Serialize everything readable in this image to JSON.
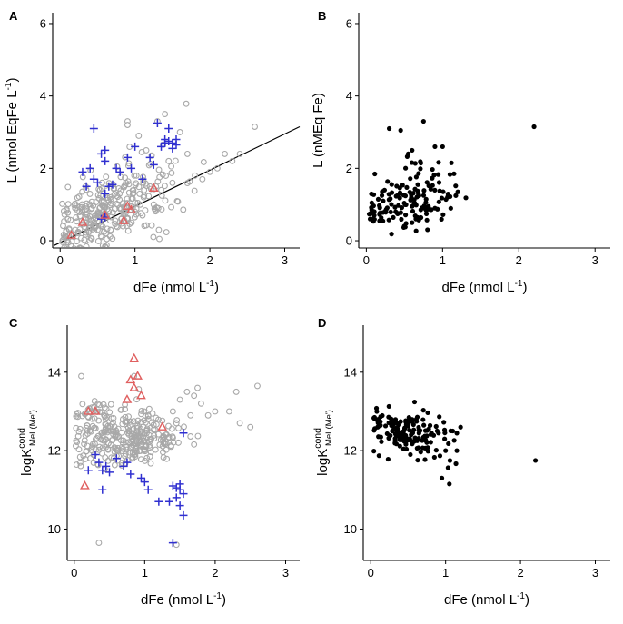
{
  "figure": {
    "title": ""
  },
  "chart_data": [
    {
      "panel": "A",
      "type": "scatter",
      "xlabel": "dFe (nmol L⁻¹)",
      "ylabel": "L (nmol EqFe L⁻¹)",
      "xlim": [
        -0.1,
        3.2
      ],
      "ylim": [
        -0.2,
        6.3
      ],
      "xticks": [
        0,
        1,
        2,
        3
      ],
      "yticks": [
        0,
        2,
        4,
        6
      ],
      "fitline": {
        "intercept": -0.05,
        "slope": 1.0
      },
      "series": [
        {
          "name": "circles-gray",
          "marker": "circle",
          "color": "#a8a8a8",
          "cloud": {
            "count": 320,
            "x_center": 0.65,
            "x_spread": 0.42,
            "y_base": 0.8,
            "y_slope": 0.9,
            "y_spread": 0.55,
            "seed": 11
          },
          "points": [
            [
              2.6,
              3.15
            ],
            [
              2.3,
              2.2
            ],
            [
              2.1,
              2.0
            ],
            [
              2.0,
              1.9
            ],
            [
              1.9,
              1.7
            ],
            [
              1.8,
              1.8
            ],
            [
              1.7,
              2.4
            ],
            [
              1.6,
              3.0
            ],
            [
              1.5,
              1.6
            ],
            [
              1.45,
              2.2
            ],
            [
              1.4,
              3.5
            ],
            [
              1.35,
              1.4
            ],
            [
              1.3,
              3.3
            ],
            [
              1.2,
              1.5
            ],
            [
              1.15,
              2.5
            ],
            [
              1.05,
              2.9
            ],
            [
              0.9,
              3.2
            ],
            [
              0.9,
              3.3
            ],
            [
              1.0,
              0.8
            ],
            [
              0.85,
              0.55
            ],
            [
              0.75,
              0.4
            ],
            [
              0.5,
              0.3
            ],
            [
              0.2,
              0.3
            ],
            [
              0.35,
              0.5
            ],
            [
              1.1,
              0.7
            ],
            [
              1.25,
              1.0
            ],
            [
              2.2,
              2.4
            ],
            [
              2.4,
              2.4
            ]
          ]
        },
        {
          "name": "crosses-blue",
          "marker": "plus",
          "color": "#3030d0",
          "points": [
            [
              0.45,
              3.1
            ],
            [
              1.3,
              3.25
            ],
            [
              1.45,
              3.1
            ],
            [
              1.4,
              2.8
            ],
            [
              1.45,
              2.75
            ],
            [
              1.5,
              2.7
            ],
            [
              1.55,
              2.8
            ],
            [
              1.35,
              2.6
            ],
            [
              1.5,
              2.55
            ],
            [
              1.55,
              2.65
            ],
            [
              1.4,
              2.7
            ],
            [
              0.6,
              2.5
            ],
            [
              0.6,
              2.2
            ],
            [
              0.55,
              2.4
            ],
            [
              1.0,
              2.6
            ],
            [
              0.75,
              2.0
            ],
            [
              0.8,
              1.9
            ],
            [
              0.9,
              2.3
            ],
            [
              0.95,
              2.0
            ],
            [
              0.3,
              1.9
            ],
            [
              0.4,
              2.0
            ],
            [
              0.45,
              1.7
            ],
            [
              0.5,
              1.6
            ],
            [
              0.65,
              1.5
            ],
            [
              0.6,
              1.3
            ],
            [
              0.7,
              1.55
            ],
            [
              1.2,
              2.3
            ],
            [
              1.25,
              2.1
            ],
            [
              1.1,
              1.7
            ],
            [
              0.35,
              1.5
            ],
            [
              0.55,
              0.6
            ],
            [
              0.6,
              0.65
            ]
          ]
        },
        {
          "name": "triangles-red",
          "marker": "triangle",
          "color": "#e06060",
          "points": [
            [
              0.15,
              0.15
            ],
            [
              0.3,
              0.5
            ],
            [
              0.6,
              0.7
            ],
            [
              0.85,
              0.55
            ],
            [
              0.9,
              0.95
            ],
            [
              0.95,
              0.85
            ],
            [
              1.25,
              1.45
            ]
          ]
        }
      ]
    },
    {
      "panel": "B",
      "type": "scatter",
      "xlabel": "dFe (nmol L⁻¹)",
      "ylabel": "L (nMEq Fe)",
      "xlim": [
        -0.1,
        3.2
      ],
      "ylim": [
        -0.2,
        6.3
      ],
      "xticks": [
        0,
        1,
        2,
        3
      ],
      "yticks": [
        0,
        2,
        4,
        6
      ],
      "series": [
        {
          "name": "dots-black",
          "marker": "dot",
          "color": "#000000",
          "cloud": {
            "count": 150,
            "x_center": 0.55,
            "x_spread": 0.3,
            "y_base": 1.1,
            "y_slope": 0.4,
            "y_spread": 0.4,
            "seed": 23
          },
          "points": [
            [
              2.2,
              3.15
            ],
            [
              0.75,
              3.3
            ],
            [
              0.3,
              3.1
            ],
            [
              0.45,
              3.05
            ],
            [
              0.9,
              2.6
            ],
            [
              1.0,
              2.6
            ],
            [
              0.6,
              2.5
            ],
            [
              0.55,
              2.4
            ],
            [
              1.2,
              1.35
            ],
            [
              1.15,
              1.85
            ],
            [
              0.05,
              0.6
            ],
            [
              0.6,
              0.5
            ],
            [
              0.65,
              0.6
            ],
            [
              0.9,
              0.9
            ]
          ]
        }
      ]
    },
    {
      "panel": "C",
      "type": "scatter",
      "xlabel": "dFe (nmol L⁻¹)",
      "ylabel": "logK",
      "ylabel_sup": "cond",
      "ylabel_sub": "MeL(Me')",
      "xlim": [
        -0.1,
        3.2
      ],
      "ylim": [
        9.2,
        15.2
      ],
      "xticks": [
        0,
        1,
        2,
        3
      ],
      "yticks": [
        10,
        12,
        14
      ],
      "series": [
        {
          "name": "circles-gray",
          "marker": "circle",
          "color": "#a8a8a8",
          "cloud": {
            "count": 320,
            "x_center": 0.7,
            "x_spread": 0.38,
            "y_base": 12.35,
            "y_slope": 0.0,
            "y_spread": 0.4,
            "seed": 37
          },
          "points": [
            [
              2.6,
              13.65
            ],
            [
              2.3,
              13.5
            ],
            [
              2.5,
              12.6
            ],
            [
              2.35,
              12.7
            ],
            [
              2.2,
              13.0
            ],
            [
              2.0,
              13.0
            ],
            [
              1.9,
              12.9
            ],
            [
              1.8,
              13.2
            ],
            [
              1.7,
              13.4
            ],
            [
              1.75,
              13.6
            ],
            [
              1.6,
              13.5
            ],
            [
              1.5,
              13.3
            ],
            [
              1.65,
              12.9
            ],
            [
              1.4,
              13.0
            ],
            [
              1.45,
              12.7
            ],
            [
              1.3,
              12.4
            ],
            [
              0.1,
              13.9
            ],
            [
              0.25,
              13.1
            ],
            [
              0.35,
              9.65
            ],
            [
              1.45,
              9.6
            ],
            [
              1.05,
              12.9
            ],
            [
              0.85,
              13.9
            ]
          ]
        },
        {
          "name": "crosses-blue",
          "marker": "plus",
          "color": "#3030d0",
          "points": [
            [
              1.55,
              12.45
            ],
            [
              1.5,
              11.15
            ],
            [
              1.4,
              11.1
            ],
            [
              1.45,
              11.05
            ],
            [
              1.5,
              11.0
            ],
            [
              1.55,
              10.9
            ],
            [
              1.45,
              10.8
            ],
            [
              1.35,
              10.7
            ],
            [
              1.5,
              10.6
            ],
            [
              1.55,
              10.35
            ],
            [
              1.4,
              9.65
            ],
            [
              1.2,
              10.7
            ],
            [
              1.05,
              11.0
            ],
            [
              1.0,
              11.2
            ],
            [
              0.95,
              11.3
            ],
            [
              0.8,
              11.4
            ],
            [
              0.4,
              11.5
            ],
            [
              0.45,
              11.6
            ],
            [
              0.35,
              11.7
            ],
            [
              0.5,
              11.45
            ],
            [
              0.7,
              11.6
            ],
            [
              0.75,
              11.7
            ],
            [
              0.6,
              11.8
            ],
            [
              0.3,
              11.9
            ],
            [
              0.4,
              11.0
            ],
            [
              0.2,
              11.5
            ]
          ]
        },
        {
          "name": "triangles-red",
          "marker": "triangle",
          "color": "#e06060",
          "points": [
            [
              0.15,
              11.1
            ],
            [
              0.2,
              13.0
            ],
            [
              0.3,
              13.0
            ],
            [
              0.75,
              13.3
            ],
            [
              0.8,
              13.8
            ],
            [
              0.85,
              13.6
            ],
            [
              0.85,
              14.35
            ],
            [
              0.9,
              13.9
            ],
            [
              0.95,
              13.4
            ],
            [
              1.25,
              12.6
            ]
          ]
        }
      ]
    },
    {
      "panel": "D",
      "type": "scatter",
      "xlabel": "dFe (nmol L⁻¹)",
      "ylabel": "logK",
      "ylabel_sup": "cond",
      "ylabel_sub": "MeL(Me')",
      "xlim": [
        -0.1,
        3.2
      ],
      "ylim": [
        9.2,
        15.2
      ],
      "xticks": [
        0,
        1,
        2,
        3
      ],
      "yticks": [
        10,
        12,
        14
      ],
      "series": [
        {
          "name": "dots-black",
          "marker": "dot",
          "color": "#000000",
          "cloud": {
            "count": 160,
            "x_center": 0.5,
            "x_spread": 0.3,
            "y_base": 12.45,
            "y_slope": -0.35,
            "y_spread": 0.3,
            "seed": 53
          },
          "points": [
            [
              2.2,
              11.75
            ],
            [
              1.05,
              11.15
            ],
            [
              0.95,
              11.3
            ],
            [
              0.05,
              12.85
            ],
            [
              0.1,
              12.8
            ],
            [
              1.15,
              12.0
            ],
            [
              1.2,
              12.6
            ],
            [
              1.0,
              12.0
            ]
          ]
        }
      ]
    }
  ]
}
